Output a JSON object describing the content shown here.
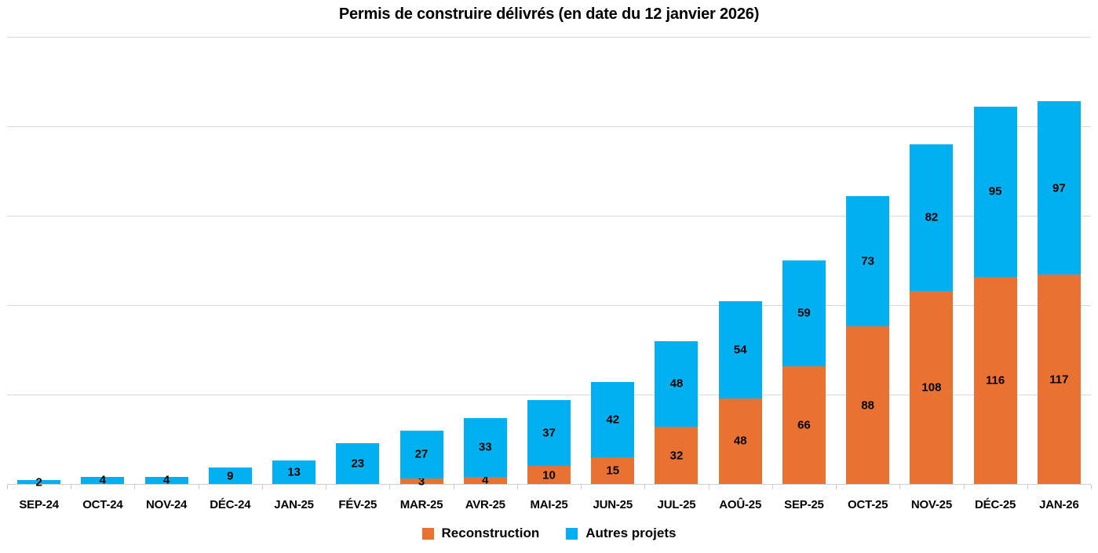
{
  "chart_data": {
    "type": "bar",
    "stacked": true,
    "title": "Permis de construire délivrés (en date du 12 janvier 2026)",
    "categories": [
      "SEP-24",
      "OCT-24",
      "NOV-24",
      "DÉC-24",
      "JAN-25",
      "FÉV-25",
      "MAR-25",
      "AVR-25",
      "MAI-25",
      "JUN-25",
      "JUL-25",
      "AOÛ-25",
      "SEP-25",
      "OCT-25",
      "NOV-25",
      "DÉC-25",
      "JAN-26"
    ],
    "series": [
      {
        "name": "Reconstruction",
        "color": "#E97132",
        "values": [
          0,
          0,
          0,
          0,
          0,
          0,
          3,
          4,
          10,
          15,
          32,
          48,
          66,
          88,
          108,
          116,
          117
        ]
      },
      {
        "name": "Autres projets",
        "color": "#00B0F0",
        "values": [
          2,
          4,
          4,
          9,
          13,
          23,
          27,
          33,
          37,
          42,
          48,
          54,
          59,
          73,
          82,
          95,
          97
        ]
      }
    ],
    "xlabel": "",
    "ylabel": "",
    "ylim": [
      0,
      250
    ],
    "grid_step": 50,
    "grid": true,
    "y_axis_labels_visible": false,
    "data_labels": true,
    "legend_position": "bottom"
  },
  "colors": {
    "background": "#FFFFFF",
    "gridline": "#D9D9D9",
    "axis": "#CFCFCF",
    "text": "#000000"
  }
}
